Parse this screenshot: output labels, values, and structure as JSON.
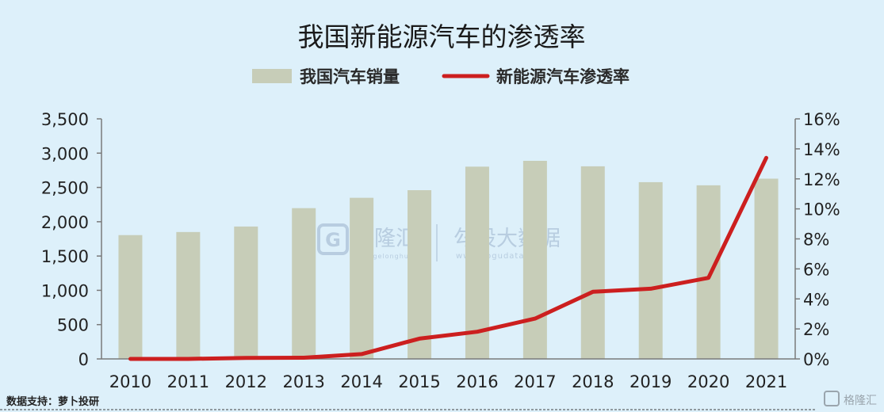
{
  "chart_data": {
    "type": "bar",
    "title": "我国新能源汽车的渗透率",
    "categories": [
      "2010",
      "2011",
      "2012",
      "2013",
      "2014",
      "2015",
      "2016",
      "2017",
      "2018",
      "2019",
      "2020",
      "2021"
    ],
    "series": [
      {
        "name": "我国汽车销量",
        "type": "bar",
        "axis": "left",
        "color": "#c7cdb8",
        "values": [
          1805,
          1850,
          1930,
          2198,
          2349,
          2460,
          2803,
          2888,
          2808,
          2577,
          2531,
          2628
        ]
      },
      {
        "name": "新能源汽车渗透率",
        "type": "line",
        "axis": "right",
        "color": "#cc1f1f",
        "values": [
          0.0,
          0.0,
          0.07,
          0.08,
          0.32,
          1.35,
          1.81,
          2.69,
          4.47,
          4.68,
          5.4,
          13.4
        ]
      }
    ],
    "left_axis": {
      "ylim": [
        0,
        3500
      ],
      "ticks": [
        "3,500",
        "3,000",
        "2,500",
        "2,000",
        "1,500",
        "1,000",
        "500",
        "0"
      ]
    },
    "right_axis": {
      "ylim": [
        0,
        16
      ],
      "ticks": [
        "16%",
        "14%",
        "12%",
        "10%",
        "8%",
        "6%",
        "4%",
        "2%",
        "0%"
      ]
    },
    "legend_position": "top-center",
    "grid": false
  },
  "source_text": "数据支持：萝卜投研",
  "watermark": {
    "brand1": "格隆汇",
    "brand1_url": "www.gelonghui.com",
    "brand2": "勾股大数据",
    "brand2_url": "www.gogudata.com"
  },
  "corner_logo": "格隆汇",
  "colors": {
    "background": "#ddf0fa",
    "bar": "#c7cdb8",
    "line": "#cc1f1f",
    "axis": "#7a7a7a"
  }
}
